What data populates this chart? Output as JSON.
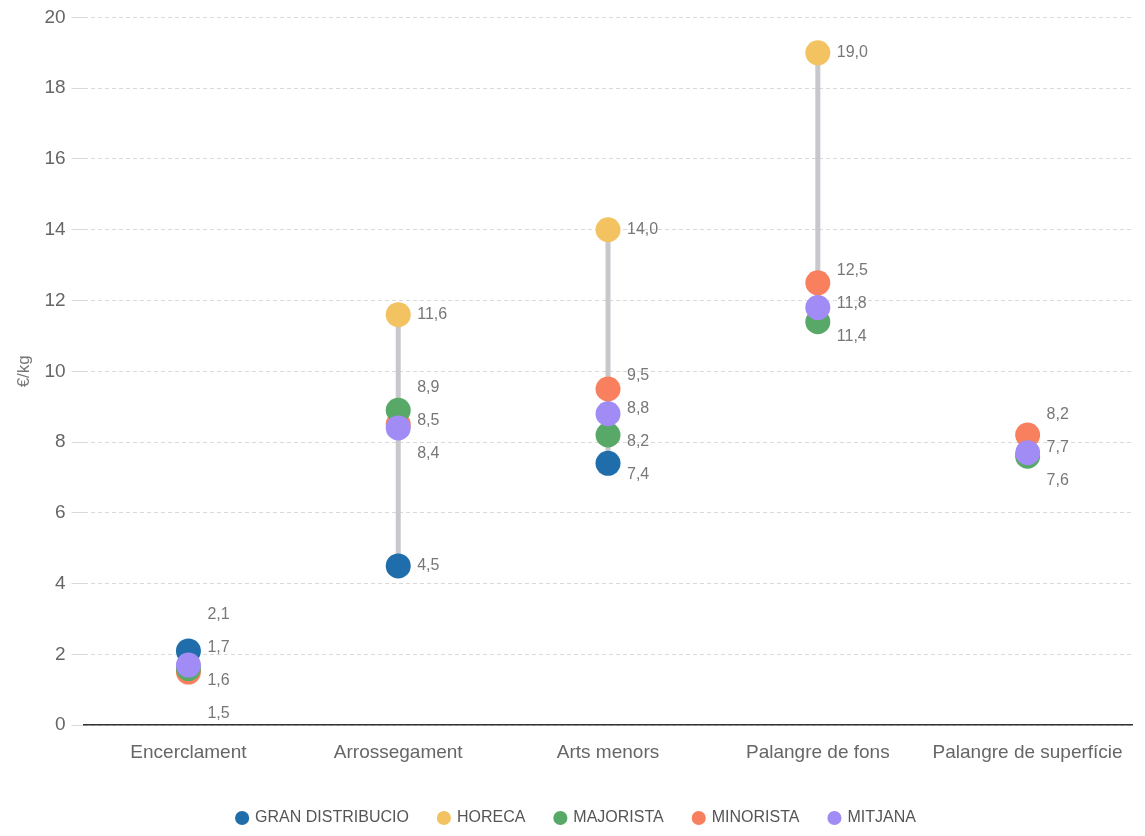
{
  "chart_data": {
    "type": "scatter",
    "ylabel": "€/kg",
    "categories": [
      "Encerclament",
      "Arrossegament",
      "Arts menors",
      "Palangre de fons",
      "Palangre de superfície"
    ],
    "series": [
      {
        "name": "GRAN DISTRIBUCIO",
        "color": "#1f6eab",
        "values": [
          2.1,
          4.5,
          7.4,
          null,
          null
        ],
        "value_labels": [
          "2,1",
          "4,5",
          "7,4",
          null,
          null
        ]
      },
      {
        "name": "HORECA",
        "color": "#f2c360",
        "values": [
          null,
          11.6,
          14.0,
          19.0,
          null
        ],
        "value_labels": [
          null,
          "11,6",
          "14,0",
          "19,0",
          null
        ]
      },
      {
        "name": "MAJORISTA",
        "color": "#58a868",
        "values": [
          1.6,
          8.9,
          8.2,
          11.4,
          7.6
        ],
        "value_labels": [
          "1,6",
          "8,9",
          "8,2",
          "11,4",
          "7,6"
        ]
      },
      {
        "name": "MINORISTA",
        "color": "#f9805f",
        "values": [
          1.5,
          8.5,
          9.5,
          12.5,
          8.2
        ],
        "value_labels": [
          "1,5",
          "8,5",
          "9,5",
          "12,5",
          "8,2"
        ]
      },
      {
        "name": "MITJANA",
        "color": "#a08cf4",
        "values": [
          1.7,
          8.4,
          8.8,
          11.8,
          7.7
        ],
        "value_labels": [
          "1,7",
          "8,4",
          "8,8",
          "11,8",
          "7,7"
        ]
      }
    ],
    "ylim": [
      0,
      20
    ],
    "yticks": [
      0,
      2,
      4,
      6,
      8,
      10,
      12,
      14,
      16,
      18,
      20
    ],
    "grid": "y",
    "legend": "bottom",
    "marker": "circle"
  }
}
